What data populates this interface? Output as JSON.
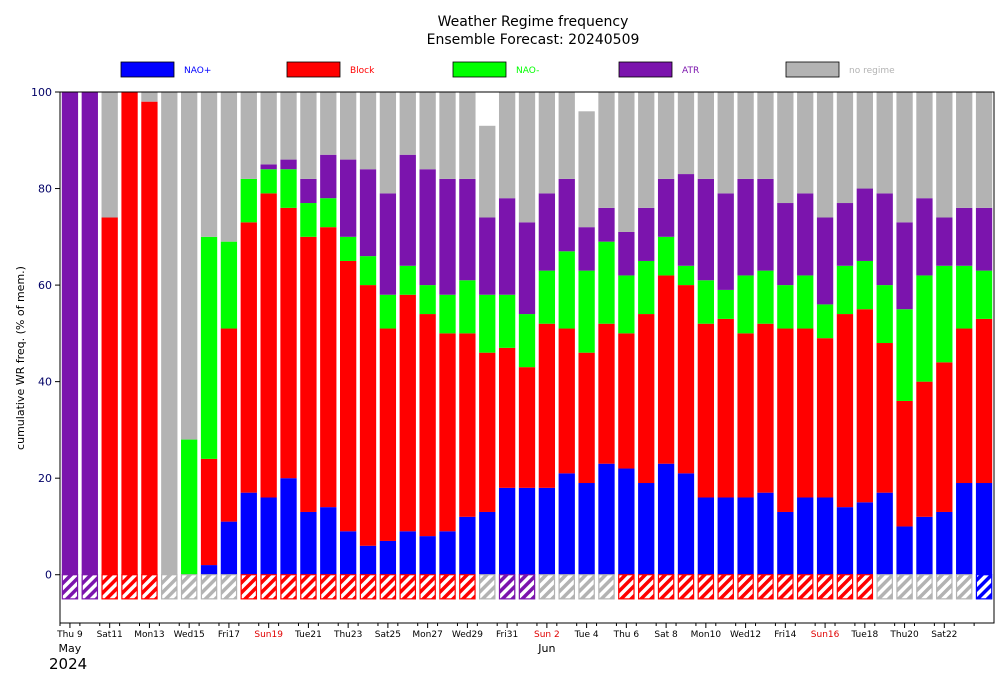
{
  "chart_data": {
    "type": "bar",
    "stacked": true,
    "title": "Weather Regime frequency",
    "subtitle": "Ensemble Forecast: 20240509",
    "ylabel": "cumulative WR freq. (% of mem.)",
    "ylim": [
      -10,
      100
    ],
    "yticks": [
      0,
      20,
      40,
      60,
      80,
      100
    ],
    "grid": false,
    "legend_position": "top",
    "colors": {
      "nao_plus": "#0000ff",
      "block": "#ff0000",
      "nao_minus": "#00ff00",
      "atr": "#7b14ad",
      "no_regime": "#b3b3b3"
    },
    "series": [
      {
        "name": "NAO+",
        "key": "nao_plus",
        "values": [
          0,
          0,
          0,
          0,
          0,
          0,
          0,
          2,
          11,
          17,
          16,
          20,
          13,
          14,
          9,
          6,
          7,
          9,
          8,
          9,
          12,
          13,
          18,
          18,
          18,
          21,
          19,
          23,
          22,
          19,
          23,
          21,
          16,
          16,
          16,
          17,
          13,
          16,
          16,
          14,
          15,
          17,
          10,
          12,
          13,
          19,
          19
        ]
      },
      {
        "name": "Block",
        "key": "block",
        "values": [
          0,
          0,
          74,
          100,
          98,
          0,
          0,
          22,
          40,
          56,
          63,
          56,
          57,
          58,
          56,
          54,
          44,
          49,
          46,
          41,
          38,
          33,
          29,
          25,
          34,
          30,
          27,
          29,
          28,
          35,
          39,
          39,
          36,
          37,
          34,
          35,
          38,
          35,
          33,
          40,
          40,
          31,
          26,
          28,
          31,
          32,
          34
        ]
      },
      {
        "name": "NAO-",
        "key": "nao_minus",
        "values": [
          0,
          0,
          0,
          0,
          0,
          0,
          28,
          46,
          18,
          9,
          5,
          8,
          7,
          6,
          5,
          6,
          7,
          6,
          6,
          8,
          11,
          12,
          11,
          11,
          11,
          16,
          17,
          17,
          12,
          11,
          8,
          4,
          9,
          6,
          12,
          11,
          9,
          11,
          7,
          10,
          10,
          12,
          19,
          22,
          20,
          13,
          10
        ]
      },
      {
        "name": "ATR",
        "key": "atr",
        "values": [
          100,
          100,
          0,
          0,
          0,
          0,
          0,
          0,
          0,
          0,
          1,
          2,
          5,
          9,
          16,
          18,
          21,
          23,
          24,
          24,
          21,
          16,
          20,
          19,
          16,
          15,
          9,
          7,
          9,
          11,
          12,
          19,
          21,
          20,
          20,
          19,
          17,
          17,
          18,
          13,
          15,
          19,
          18,
          16,
          10,
          12,
          13
        ]
      },
      {
        "name": "no regime",
        "key": "no_regime",
        "values": [
          0,
          0,
          26,
          0,
          2,
          100,
          72,
          30,
          31,
          18,
          15,
          14,
          18,
          13,
          14,
          16,
          21,
          13,
          16,
          18,
          18,
          19,
          22,
          27,
          21,
          18,
          24,
          24,
          29,
          24,
          18,
          17,
          18,
          21,
          18,
          18,
          23,
          21,
          26,
          23,
          20,
          21,
          27,
          22,
          26,
          24,
          24
        ]
      }
    ],
    "regime_markers": [
      "atr",
      "atr",
      "block",
      "block",
      "block",
      "no_regime",
      "no_regime",
      "no_regime",
      "no_regime",
      "block",
      "block",
      "block",
      "block",
      "block",
      "block",
      "block",
      "block",
      "block",
      "block",
      "block",
      "block",
      "no_regime",
      "atr",
      "atr",
      "no_regime",
      "no_regime",
      "no_regime",
      "no_regime",
      "block",
      "block",
      "block",
      "block",
      "block",
      "block",
      "block",
      "block",
      "block",
      "block",
      "block",
      "block",
      "block",
      "no_regime",
      "no_regime",
      "no_regime",
      "no_regime",
      "no_regime",
      "nao_plus"
    ],
    "x_ticks": [
      {
        "index": 0,
        "label": "Thu 9",
        "red": false
      },
      {
        "index": 2,
        "label": "Sat11",
        "red": false
      },
      {
        "index": 4,
        "label": "Mon13",
        "red": false
      },
      {
        "index": 6,
        "label": "Wed15",
        "red": false
      },
      {
        "index": 8,
        "label": "Fri17",
        "red": false
      },
      {
        "index": 10,
        "label": "Sun19",
        "red": true
      },
      {
        "index": 12,
        "label": "Tue21",
        "red": false
      },
      {
        "index": 14,
        "label": "Thu23",
        "red": false
      },
      {
        "index": 16,
        "label": "Sat25",
        "red": false
      },
      {
        "index": 18,
        "label": "Mon27",
        "red": false
      },
      {
        "index": 20,
        "label": "Wed29",
        "red": false
      },
      {
        "index": 22,
        "label": "Fri31",
        "red": false
      },
      {
        "index": 24,
        "label": "Sun 2",
        "red": true
      },
      {
        "index": 26,
        "label": "Tue 4",
        "red": false
      },
      {
        "index": 28,
        "label": "Thu 6",
        "red": false
      },
      {
        "index": 30,
        "label": "Sat 8",
        "red": false
      },
      {
        "index": 32,
        "label": "Mon10",
        "red": false
      },
      {
        "index": 34,
        "label": "Wed12",
        "red": false
      },
      {
        "index": 36,
        "label": "Fri14",
        "red": false
      },
      {
        "index": 38,
        "label": "Sun16",
        "red": true
      },
      {
        "index": 40,
        "label": "Tue18",
        "red": false
      },
      {
        "index": 42,
        "label": "Thu20",
        "red": false
      },
      {
        "index": 44,
        "label": "Sat22",
        "red": false
      }
    ],
    "month_labels": [
      {
        "index": 0,
        "label": "May"
      },
      {
        "index": 24,
        "label": "Jun"
      }
    ],
    "year_label": "2024"
  }
}
